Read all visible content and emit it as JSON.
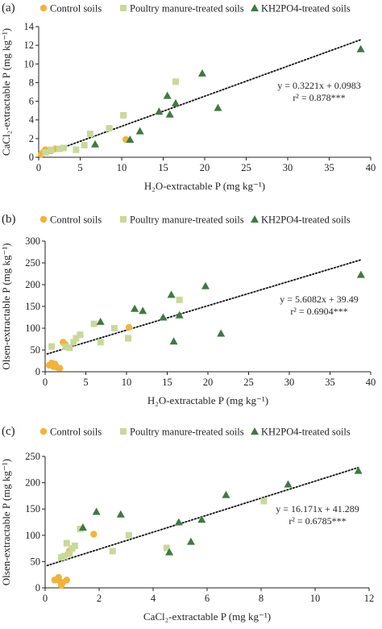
{
  "colors": {
    "control": "#f2b33d",
    "poultry": "#c8d99a",
    "kh2po4": "#3d7a3f",
    "axis": "#222222",
    "trend": "#111111"
  },
  "legend": {
    "control": "Control soils",
    "poultry": "Poultry manure-treated soils",
    "kh2po4": "KH2PO4-treated soils"
  },
  "chart_data": [
    {
      "type": "scatter",
      "panel_label": "(a)",
      "xlabel": "H₂O-extractable P (mg kg⁻¹)",
      "ylabel": "CaCl₂-extractable P (mg kg⁻¹)",
      "xlim": [
        0,
        40
      ],
      "ylim": [
        0,
        14
      ],
      "xticks": [
        0,
        5,
        10,
        15,
        20,
        25,
        30,
        35,
        40
      ],
      "yticks": [
        0,
        2,
        4,
        6,
        8,
        10,
        12,
        14
      ],
      "trend": {
        "slope": 0.3221,
        "intercept": 0.0983
      },
      "equation": "y = 0.3221x + 0.0983",
      "r2": "r² = 0.878***",
      "series": [
        {
          "name": "Control soils",
          "marker": "circle",
          "points": [
            [
              0.3,
              0.3
            ],
            [
              0.5,
              0.5
            ],
            [
              0.8,
              0.8
            ],
            [
              1.0,
              0.6
            ],
            [
              1.5,
              0.7
            ],
            [
              2.0,
              0.9
            ],
            [
              10.5,
              1.9
            ]
          ]
        },
        {
          "name": "Poultry manure-treated soils",
          "marker": "square",
          "points": [
            [
              0.8,
              0.5
            ],
            [
              1.5,
              0.8
            ],
            [
              2.5,
              0.9
            ],
            [
              3.0,
              1.0
            ],
            [
              4.5,
              0.8
            ],
            [
              5.5,
              1.3
            ],
            [
              6.2,
              2.5
            ],
            [
              8.5,
              3.1
            ],
            [
              10.2,
              4.5
            ],
            [
              16.5,
              8.1
            ]
          ]
        },
        {
          "name": "KH2PO4-treated soils",
          "marker": "triangle",
          "points": [
            [
              6.8,
              1.4
            ],
            [
              11.0,
              1.9
            ],
            [
              12.2,
              2.8
            ],
            [
              14.5,
              4.9
            ],
            [
              15.5,
              6.6
            ],
            [
              15.8,
              4.6
            ],
            [
              16.5,
              5.8
            ],
            [
              19.7,
              9.0
            ],
            [
              21.6,
              5.3
            ],
            [
              38.8,
              11.6
            ]
          ]
        }
      ]
    },
    {
      "type": "scatter",
      "panel_label": "(b)",
      "xlabel": "H₂O-extractable P (mg kg⁻¹)",
      "ylabel": "Olsen-extractable P (mg kg⁻¹)",
      "xlim": [
        0,
        40
      ],
      "ylim": [
        0,
        300
      ],
      "xticks": [
        0,
        5,
        10,
        15,
        20,
        25,
        30,
        35,
        40
      ],
      "yticks": [
        0,
        50,
        100,
        150,
        200,
        250,
        300
      ],
      "trend": {
        "slope": 5.6082,
        "intercept": 39.49
      },
      "equation": "y = 5.6082x + 39.49",
      "r2": "r² = 0.6904***",
      "series": [
        {
          "name": "Control soils",
          "marker": "circle",
          "points": [
            [
              0.5,
              15
            ],
            [
              0.8,
              20
            ],
            [
              1.0,
              12
            ],
            [
              1.2,
              18
            ],
            [
              1.5,
              10
            ],
            [
              1.8,
              8
            ],
            [
              2.2,
              68
            ],
            [
              2.5,
              62
            ],
            [
              10.3,
              102
            ]
          ]
        },
        {
          "name": "Poultry manure-treated soils",
          "marker": "square",
          "points": [
            [
              0.8,
              58
            ],
            [
              2.5,
              57
            ],
            [
              3.0,
              55
            ],
            [
              3.5,
              68
            ],
            [
              3.8,
              77
            ],
            [
              4.3,
              85
            ],
            [
              6.0,
              110
            ],
            [
              6.8,
              68
            ],
            [
              8.5,
              100
            ],
            [
              10.2,
              77
            ],
            [
              16.5,
              165
            ]
          ]
        },
        {
          "name": "KH2PO4-treated soils",
          "marker": "triangle",
          "points": [
            [
              6.8,
              115
            ],
            [
              11.0,
              145
            ],
            [
              12.0,
              140
            ],
            [
              14.5,
              125
            ],
            [
              15.5,
              177
            ],
            [
              15.8,
              70
            ],
            [
              16.5,
              130
            ],
            [
              19.7,
              197
            ],
            [
              21.6,
              88
            ],
            [
              38.8,
              223
            ]
          ]
        }
      ]
    },
    {
      "type": "scatter",
      "panel_label": "(c)",
      "xlabel": "CaCl₂-extractable P (mg kg⁻¹)",
      "ylabel": "Olsen-extractable P (mg kg⁻¹)",
      "xlim": [
        0,
        12
      ],
      "ylim": [
        0,
        250
      ],
      "xticks": [
        0,
        2,
        4,
        6,
        8,
        10,
        12
      ],
      "yticks": [
        0,
        50,
        100,
        150,
        200,
        250
      ],
      "trend": {
        "slope": 16.171,
        "intercept": 41.289
      },
      "equation": "y = 16.171x + 41.289",
      "r2": "r² = 0.6785***",
      "series": [
        {
          "name": "Control soils",
          "marker": "circle",
          "points": [
            [
              0.35,
              15
            ],
            [
              0.5,
              20
            ],
            [
              0.55,
              12
            ],
            [
              0.6,
              5
            ],
            [
              0.65,
              10
            ],
            [
              0.8,
              15
            ],
            [
              0.85,
              65
            ],
            [
              0.9,
              70
            ],
            [
              1.8,
              102
            ]
          ]
        },
        {
          "name": "Poultry manure-treated soils",
          "marker": "square",
          "points": [
            [
              0.6,
              58
            ],
            [
              0.7,
              60
            ],
            [
              0.8,
              85
            ],
            [
              0.9,
              65
            ],
            [
              1.0,
              75
            ],
            [
              1.1,
              80
            ],
            [
              1.3,
              112
            ],
            [
              2.5,
              70
            ],
            [
              3.1,
              100
            ],
            [
              4.5,
              76
            ],
            [
              8.1,
              165
            ]
          ]
        },
        {
          "name": "KH2PO4-treated soils",
          "marker": "triangle",
          "points": [
            [
              1.4,
              115
            ],
            [
              1.9,
              145
            ],
            [
              2.8,
              140
            ],
            [
              4.6,
              68
            ],
            [
              4.95,
              125
            ],
            [
              5.4,
              88
            ],
            [
              5.8,
              130
            ],
            [
              6.7,
              177
            ],
            [
              9.0,
              197
            ],
            [
              11.6,
              223
            ]
          ]
        }
      ]
    }
  ]
}
